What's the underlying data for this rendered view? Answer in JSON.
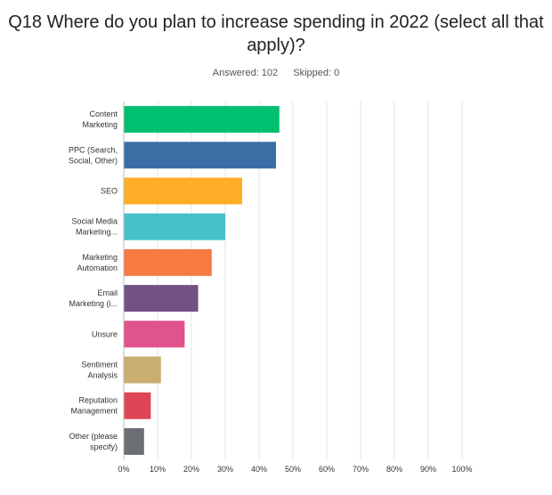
{
  "header": {
    "title": "Q18 Where do you plan to increase spending in 2022 (select all that apply)?",
    "answered": "Answered: 102",
    "skipped": "Skipped: 0"
  },
  "chart_data": {
    "type": "bar",
    "orientation": "horizontal",
    "categories": [
      [
        "Content",
        "Marketing"
      ],
      [
        "PPC (Search,",
        "Social, Other)"
      ],
      [
        "SEO"
      ],
      [
        "Social Media",
        "Marketing..."
      ],
      [
        "Marketing",
        "Automation"
      ],
      [
        "Email",
        "Marketing (i..."
      ],
      [
        "Unsure"
      ],
      [
        "Sentiment",
        "Analysis"
      ],
      [
        "Reputation",
        "Management"
      ],
      [
        "Other (please",
        "specify)"
      ]
    ],
    "values": [
      46,
      45,
      35,
      30,
      26,
      22,
      18,
      11,
      8,
      6
    ],
    "colors": [
      "#00bf6f",
      "#3a6ea5",
      "#ffac27",
      "#46c1c8",
      "#f87a43",
      "#725286",
      "#e0538c",
      "#c8ae6f",
      "#e04556",
      "#6c7074"
    ],
    "xlim": [
      0,
      100
    ],
    "xticks": [
      "0%",
      "10%",
      "20%",
      "30%",
      "40%",
      "50%",
      "60%",
      "70%",
      "80%",
      "90%",
      "100%"
    ],
    "grid": true
  }
}
